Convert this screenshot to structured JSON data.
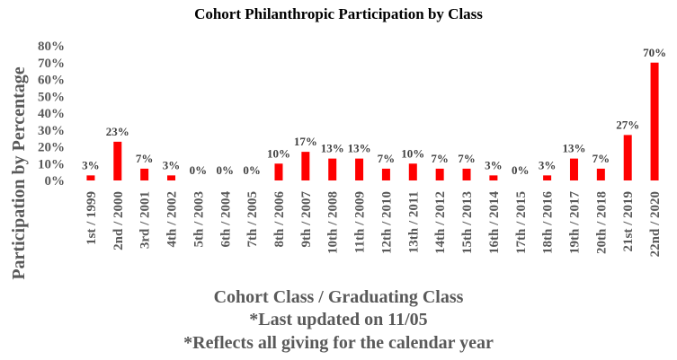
{
  "chart_data": {
    "type": "bar",
    "title": "Cohort Philanthropic Participation by Class",
    "ylabel": "Participation by Percentage",
    "xlabel": "Cohort Class / Graduating Class",
    "notes": [
      "*Last updated on 11/05",
      "*Reflects all giving for the calendar  year"
    ],
    "ylim": [
      0,
      80
    ],
    "yticks": [
      "0%",
      "10%",
      "20%",
      "30%",
      "40%",
      "50%",
      "60%",
      "70%",
      "80%"
    ],
    "bar_color": "#ff0000",
    "categories": [
      "1st / 1999",
      "2nd / 2000",
      "3rd / 2001",
      "4th / 2002",
      "5th / 2003",
      "6th / 2004",
      "7th / 2005",
      "8th / 2006",
      "9th / 2007",
      "10th / 2008",
      "11th / 2009",
      "12th / 2010",
      "13th / 2011",
      "14th / 2012",
      "15th / 2013",
      "16th / 2014",
      "17th / 2015",
      "18th / 2016",
      "19th / 2017",
      "20th / 2018",
      "21st / 2019",
      "22nd / 2020"
    ],
    "values": [
      3,
      23,
      7,
      3,
      0,
      0,
      0,
      10,
      17,
      13,
      13,
      7,
      10,
      7,
      7,
      3,
      0,
      3,
      13,
      7,
      27,
      70
    ],
    "data_labels": [
      "3%",
      "23%",
      "7%",
      "3%",
      "0%",
      "0%",
      "0%",
      "10%",
      "17%",
      "13%",
      "13%",
      "7%",
      "10%",
      "7%",
      "7%",
      "3%",
      "0%",
      "3%",
      "13%",
      "7%",
      "27%",
      "70%"
    ]
  }
}
